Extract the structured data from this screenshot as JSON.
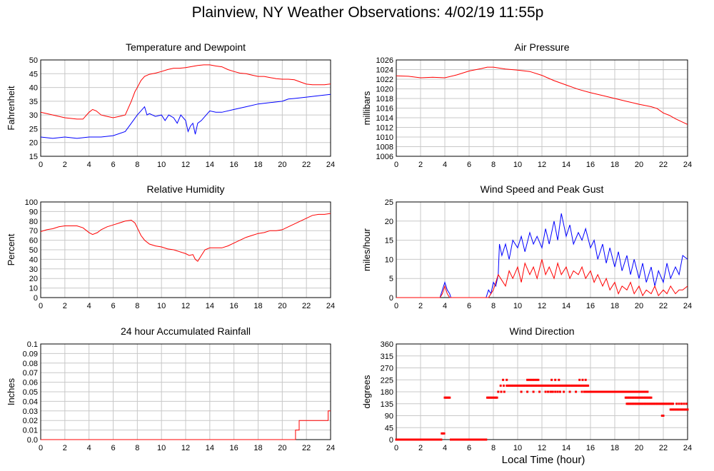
{
  "page": {
    "title": "Plainview, NY Weather Observations: 4/02/19 11:55p",
    "x_axis_label": "Local Time (hour)"
  },
  "chart_data": [
    {
      "id": "temp",
      "type": "line",
      "title": "Temperature and Dewpoint",
      "ylabel": "Fahrenheit",
      "ylim": [
        15,
        50
      ],
      "yticks": [
        15,
        20,
        25,
        30,
        35,
        40,
        45,
        50
      ],
      "xlim": [
        0,
        24
      ],
      "xticks": [
        0,
        2,
        4,
        6,
        8,
        10,
        12,
        14,
        16,
        18,
        20,
        22,
        24
      ],
      "grid": true,
      "series": [
        {
          "color": "#ff0000",
          "x": [
            0,
            1,
            2,
            3,
            3.5,
            4,
            4.3,
            4.6,
            5,
            5.5,
            6,
            6.5,
            7,
            7.5,
            7.8,
            8,
            8.3,
            8.6,
            9,
            9.5,
            10,
            10.5,
            11,
            11.5,
            12,
            12.5,
            13,
            13.5,
            14,
            14.5,
            15,
            15.5,
            16,
            16.5,
            17,
            17.5,
            18,
            18.5,
            19,
            19.5,
            20,
            20.5,
            21,
            21.5,
            22,
            22.5,
            23,
            23.5,
            24
          ],
          "y": [
            31,
            30,
            29,
            28.5,
            28.5,
            31,
            32,
            31.5,
            30,
            29.5,
            29,
            29.5,
            30,
            35,
            38.5,
            40,
            42.5,
            44,
            44.8,
            45.2,
            45.8,
            46.5,
            47,
            47,
            47.2,
            47.6,
            48,
            48.2,
            48.2,
            47.8,
            47.5,
            46.5,
            45.8,
            45.2,
            45,
            44.5,
            44,
            44,
            43.6,
            43.2,
            43,
            43,
            42.8,
            42,
            41.2,
            41,
            41,
            41,
            41.3
          ]
        },
        {
          "color": "#0000ff",
          "x": [
            0,
            1,
            2,
            3,
            4,
            5,
            6,
            7,
            7.5,
            8,
            8.3,
            8.6,
            8.8,
            9,
            9.5,
            10,
            10.3,
            10.6,
            11,
            11.3,
            11.6,
            12,
            12.2,
            12.4,
            12.6,
            12.8,
            13,
            13.3,
            13.6,
            14,
            14.5,
            15,
            16,
            16.5,
            17,
            18,
            19,
            20,
            20.5,
            21,
            22,
            23,
            24
          ],
          "y": [
            22,
            21.5,
            22,
            21.5,
            22,
            22,
            22.5,
            24,
            27,
            30,
            31.5,
            33,
            30,
            30.5,
            29.5,
            30,
            28,
            30,
            29,
            27,
            30,
            28,
            24,
            26,
            27,
            23,
            27,
            28,
            29.5,
            31.5,
            31,
            31,
            32,
            32.5,
            33,
            34,
            34.5,
            35,
            35.8,
            36,
            36.5,
            37,
            37.5
          ]
        }
      ]
    },
    {
      "id": "pressure",
      "type": "line",
      "title": "Air Pressure",
      "ylabel": "millibars",
      "ylim": [
        1006,
        1026
      ],
      "yticks": [
        1006,
        1008,
        1010,
        1012,
        1014,
        1016,
        1018,
        1020,
        1022,
        1024,
        1026
      ],
      "xlim": [
        0,
        24
      ],
      "xticks": [
        0,
        2,
        4,
        6,
        8,
        10,
        12,
        14,
        16,
        18,
        20,
        22,
        24
      ],
      "grid": true,
      "series": [
        {
          "color": "#ff0000",
          "x": [
            0,
            1,
            2,
            3,
            4,
            5,
            6,
            7,
            7.5,
            8,
            9,
            10,
            11,
            12,
            13,
            14,
            15,
            16,
            17,
            18,
            19,
            20,
            21,
            21.5,
            22,
            22.5,
            23,
            23.5,
            24
          ],
          "y": [
            1022.7,
            1022.6,
            1022.3,
            1022.4,
            1022.3,
            1022.9,
            1023.7,
            1024.2,
            1024.5,
            1024.5,
            1024.1,
            1023.9,
            1023.6,
            1022.8,
            1021.7,
            1020.8,
            1019.9,
            1019.2,
            1018.6,
            1018,
            1017.4,
            1016.8,
            1016.3,
            1015.9,
            1015,
            1014.5,
            1013.8,
            1013.2,
            1012.6
          ]
        }
      ]
    },
    {
      "id": "humidity",
      "type": "line",
      "title": "Relative Humidity",
      "ylabel": "Percent",
      "ylim": [
        0,
        100
      ],
      "yticks": [
        0,
        10,
        20,
        30,
        40,
        50,
        60,
        70,
        80,
        90,
        100
      ],
      "xlim": [
        0,
        24
      ],
      "xticks": [
        0,
        2,
        4,
        6,
        8,
        10,
        12,
        14,
        16,
        18,
        20,
        22,
        24
      ],
      "grid": true,
      "series": [
        {
          "color": "#ff0000",
          "x": [
            0,
            0.5,
            1,
            1.5,
            2,
            2.5,
            3,
            3.5,
            4,
            4.3,
            4.7,
            5,
            5.5,
            6,
            6.5,
            7,
            7.5,
            7.8,
            8,
            8.3,
            8.6,
            9,
            9.5,
            10,
            10.5,
            11,
            11.5,
            12,
            12.3,
            12.6,
            12.8,
            13,
            13.3,
            13.6,
            14,
            14.5,
            15,
            15.5,
            16,
            16.5,
            17,
            17.5,
            18,
            18.5,
            19,
            19.5,
            20,
            20.5,
            21,
            21.5,
            22,
            22.5,
            23,
            23.5,
            24
          ],
          "y": [
            69,
            71,
            72,
            74,
            75,
            75,
            75,
            73,
            68,
            66,
            68,
            71,
            74,
            76,
            78,
            80,
            81,
            78,
            73,
            65,
            60,
            56,
            54,
            53,
            51,
            50,
            48,
            46,
            44,
            45,
            40,
            38,
            44,
            50,
            52,
            52,
            52,
            54,
            57,
            60,
            63,
            65,
            67,
            68,
            70,
            70,
            71,
            74,
            77,
            80,
            83,
            86,
            87,
            87,
            88
          ]
        }
      ]
    },
    {
      "id": "wind",
      "type": "line",
      "title": "Wind Speed and Peak Gust",
      "ylabel": "miles/hour",
      "ylim": [
        0,
        25
      ],
      "yticks": [
        0,
        5,
        10,
        15,
        20,
        25
      ],
      "xlim": [
        0,
        24
      ],
      "xticks": [
        0,
        2,
        4,
        6,
        8,
        10,
        12,
        14,
        16,
        18,
        20,
        22,
        24
      ],
      "grid": true,
      "series": [
        {
          "color": "#0000ff",
          "x": [
            0,
            3.6,
            3.8,
            4,
            4.2,
            4.4,
            4.5,
            7.4,
            7.6,
            7.8,
            8,
            8.2,
            8.4,
            8.5,
            8.7,
            9,
            9.3,
            9.6,
            10,
            10.3,
            10.6,
            11,
            11.3,
            11.6,
            12,
            12.3,
            12.6,
            13,
            13.3,
            13.6,
            14,
            14.3,
            14.6,
            15,
            15.3,
            15.6,
            16,
            16.3,
            16.6,
            17,
            17.3,
            17.6,
            18,
            18.3,
            18.6,
            19,
            19.3,
            19.6,
            20,
            20.3,
            20.6,
            21,
            21.3,
            21.6,
            22,
            22.3,
            22.6,
            23,
            23.3,
            23.6,
            24
          ],
          "y": [
            0,
            0,
            2,
            4,
            2,
            1,
            0,
            0,
            2,
            1,
            4,
            3,
            6,
            14,
            11,
            14,
            10,
            15,
            13,
            16,
            12,
            17,
            14,
            16,
            13,
            18,
            14,
            20,
            15,
            22,
            16,
            19,
            14,
            17,
            15,
            18,
            13,
            15,
            10,
            14,
            9,
            13,
            8,
            12,
            7,
            11,
            6,
            10,
            5,
            9,
            4,
            8,
            3,
            7,
            4,
            9,
            5,
            8,
            6,
            11,
            10
          ]
        },
        {
          "color": "#ff0000",
          "x": [
            0,
            3.6,
            3.8,
            4,
            4.2,
            4.4,
            7.6,
            7.8,
            8,
            8.2,
            8.4,
            8.6,
            9,
            9.3,
            9.6,
            10,
            10.3,
            10.6,
            11,
            11.3,
            11.6,
            12,
            12.3,
            12.6,
            13,
            13.3,
            13.6,
            14,
            14.3,
            14.6,
            15,
            15.3,
            15.6,
            16,
            16.3,
            16.6,
            17,
            17.3,
            17.6,
            18,
            18.3,
            18.6,
            19,
            19.3,
            19.6,
            20,
            20.3,
            20.6,
            21,
            21.3,
            21.6,
            22,
            22.3,
            22.6,
            23,
            23.3,
            23.6,
            24
          ],
          "y": [
            0,
            0,
            1,
            3,
            1,
            0,
            0,
            1,
            2,
            4,
            6,
            5,
            3,
            7,
            5,
            8,
            4,
            9,
            6,
            8,
            5,
            10,
            6,
            8,
            5,
            9,
            6,
            8,
            5,
            7,
            6,
            8,
            5,
            7,
            4,
            6,
            3,
            5,
            2,
            4,
            1,
            3,
            2,
            4,
            1,
            3,
            0.5,
            2,
            1,
            3,
            0.5,
            2,
            1,
            3,
            1,
            2,
            2,
            3
          ]
        }
      ]
    },
    {
      "id": "rain",
      "type": "line",
      "title": "24 hour Accumulated Rainfall",
      "ylabel": "Inches",
      "ylim": [
        0,
        0.1
      ],
      "yticks": [
        0.0,
        0.01,
        0.02,
        0.03,
        0.04,
        0.05,
        0.06,
        0.07,
        0.08,
        0.09,
        0.1
      ],
      "ytick_labels": [
        "0.0",
        "0.01",
        "0.02",
        "0.03",
        "0.04",
        "0.05",
        "0.06",
        "0.07",
        "0.08",
        "0.09",
        "0.1"
      ],
      "xlim": [
        0,
        24
      ],
      "xticks": [
        0,
        2,
        4,
        6,
        8,
        10,
        12,
        14,
        16,
        18,
        20,
        22,
        24
      ],
      "grid": true,
      "series": [
        {
          "color": "#ff0000",
          "x": [
            0,
            21.1,
            21.1,
            21.4,
            21.4,
            23.8,
            23.8,
            24
          ],
          "y": [
            0,
            0,
            0.01,
            0.01,
            0.02,
            0.02,
            0.03,
            0.03
          ]
        }
      ]
    },
    {
      "id": "direction",
      "type": "scatter",
      "title": "Wind Direction",
      "ylabel": "degrees",
      "ylim": [
        0,
        360
      ],
      "yticks": [
        0,
        45,
        90,
        135,
        180,
        225,
        270,
        315,
        360
      ],
      "xlim": [
        0,
        24
      ],
      "xticks": [
        0,
        2,
        4,
        6,
        8,
        10,
        12,
        14,
        16,
        18,
        20,
        22,
        24
      ],
      "grid": true,
      "series": [
        {
          "color": "#ff0000",
          "segments": [
            {
              "x0": 0,
              "x1": 3.7,
              "step": 0.1,
              "y": 0
            },
            {
              "x0": 3.75,
              "x1": 3.95,
              "step": 0.1,
              "y": 23
            },
            {
              "x0": 4.0,
              "x1": 4.4,
              "step": 0.1,
              "y": 158
            },
            {
              "x0": 4.5,
              "x1": 7.4,
              "step": 0.1,
              "y": 0
            },
            {
              "x0": 7.5,
              "x1": 8.3,
              "step": 0.1,
              "y": 158
            },
            {
              "x0": 8.4,
              "x1": 9.1,
              "step": 0.25,
              "y": 180
            },
            {
              "x0": 8.6,
              "x1": 9.1,
              "step": 0.25,
              "y": 203
            },
            {
              "x0": 8.8,
              "x1": 9.1,
              "step": 0.3,
              "y": 225
            },
            {
              "x0": 9.2,
              "x1": 15.8,
              "step": 0.1,
              "y": 203
            },
            {
              "x0": 10.8,
              "x1": 11.8,
              "step": 0.15,
              "y": 225
            },
            {
              "x0": 12.8,
              "x1": 13.4,
              "step": 0.3,
              "y": 225
            },
            {
              "x0": 15.1,
              "x1": 15.6,
              "step": 0.25,
              "y": 225
            },
            {
              "x0": 10.3,
              "x1": 15.3,
              "step": 0.5,
              "y": 180
            },
            {
              "x0": 12.5,
              "x1": 13.5,
              "step": 0.2,
              "y": 180
            },
            {
              "x0": 15.5,
              "x1": 20.7,
              "step": 0.1,
              "y": 180
            },
            {
              "x0": 18.9,
              "x1": 21.0,
              "step": 0.1,
              "y": 158
            },
            {
              "x0": 19.0,
              "x1": 22.8,
              "step": 0.1,
              "y": 135
            },
            {
              "x0": 21.9,
              "x1": 22.0,
              "step": 0.1,
              "y": 90
            },
            {
              "x0": 22.6,
              "x1": 24,
              "step": 0.1,
              "y": 113
            },
            {
              "x0": 23.1,
              "x1": 24,
              "step": 0.2,
              "y": 135
            }
          ]
        }
      ]
    }
  ]
}
